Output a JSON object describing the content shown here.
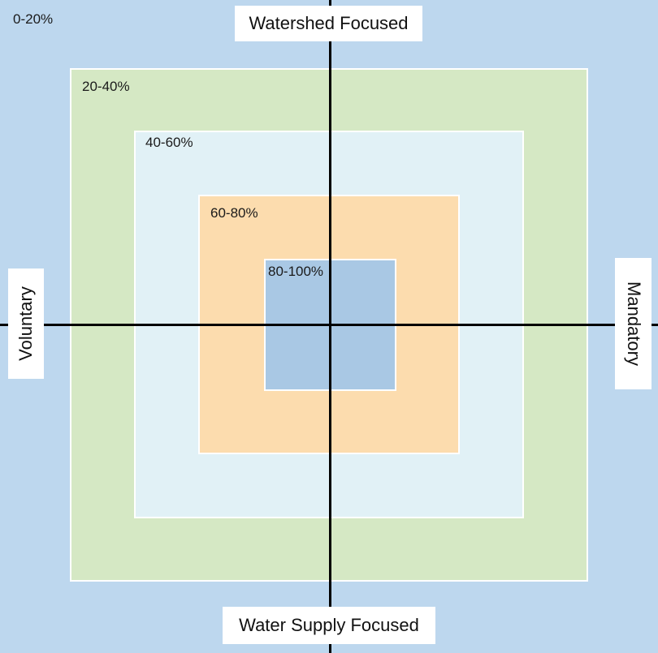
{
  "zones": [
    {
      "label": "0-20%",
      "color": "#bdd7ee"
    },
    {
      "label": "20-40%",
      "color": "#d5e8c4"
    },
    {
      "label": "40-60%",
      "color": "#e1f1f6"
    },
    {
      "label": "60-80%",
      "color": "#fcdcae"
    },
    {
      "label": "80-100%",
      "color": "#a9c8e4"
    }
  ],
  "axes": {
    "top": "Watershed Focused",
    "bottom": "Water Supply Focused",
    "left": "Voluntary",
    "right": "Mandatory",
    "line_color": "#000000"
  }
}
